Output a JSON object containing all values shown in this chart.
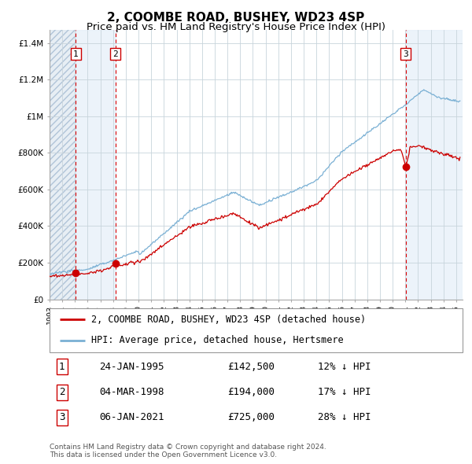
{
  "title": "2, COOMBE ROAD, BUSHEY, WD23 4SP",
  "subtitle": "Price paid vs. HM Land Registry's House Price Index (HPI)",
  "ylabel_ticks": [
    "£0",
    "£200K",
    "£400K",
    "£600K",
    "£800K",
    "£1M",
    "£1.2M",
    "£1.4M"
  ],
  "ytick_values": [
    0,
    200000,
    400000,
    600000,
    800000,
    1000000,
    1200000,
    1400000
  ],
  "ylim": [
    0,
    1470000
  ],
  "xlim_start": 1993.0,
  "xlim_end": 2025.5,
  "sale_dates": [
    1995.07,
    1998.17,
    2021.02
  ],
  "sale_prices": [
    142500,
    194000,
    725000
  ],
  "sale_labels": [
    "1",
    "2",
    "3"
  ],
  "red_line_color": "#cc0000",
  "blue_line_color": "#7ab0d4",
  "grid_color": "#c8d4dc",
  "background_color": "#ffffff",
  "sale_marker_color": "#cc0000",
  "dashed_line_color": "#dd0000",
  "hatch_region_color": "#d8e4ee",
  "sale_region_color": "#e4eef8",
  "legend_label_red": "2, COOMBE ROAD, BUSHEY, WD23 4SP (detached house)",
  "legend_label_blue": "HPI: Average price, detached house, Hertsmere",
  "table_rows": [
    {
      "num": "1",
      "date": "24-JAN-1995",
      "price": "£142,500",
      "hpi": "12% ↓ HPI"
    },
    {
      "num": "2",
      "date": "04-MAR-1998",
      "price": "£194,000",
      "hpi": "17% ↓ HPI"
    },
    {
      "num": "3",
      "date": "06-JAN-2021",
      "price": "£725,000",
      "hpi": "28% ↓ HPI"
    }
  ],
  "footnote": "Contains HM Land Registry data © Crown copyright and database right 2024.\nThis data is licensed under the Open Government Licence v3.0.",
  "title_fontsize": 11,
  "subtitle_fontsize": 9.5,
  "tick_fontsize": 7.5,
  "legend_fontsize": 8.5,
  "table_fontsize": 9
}
